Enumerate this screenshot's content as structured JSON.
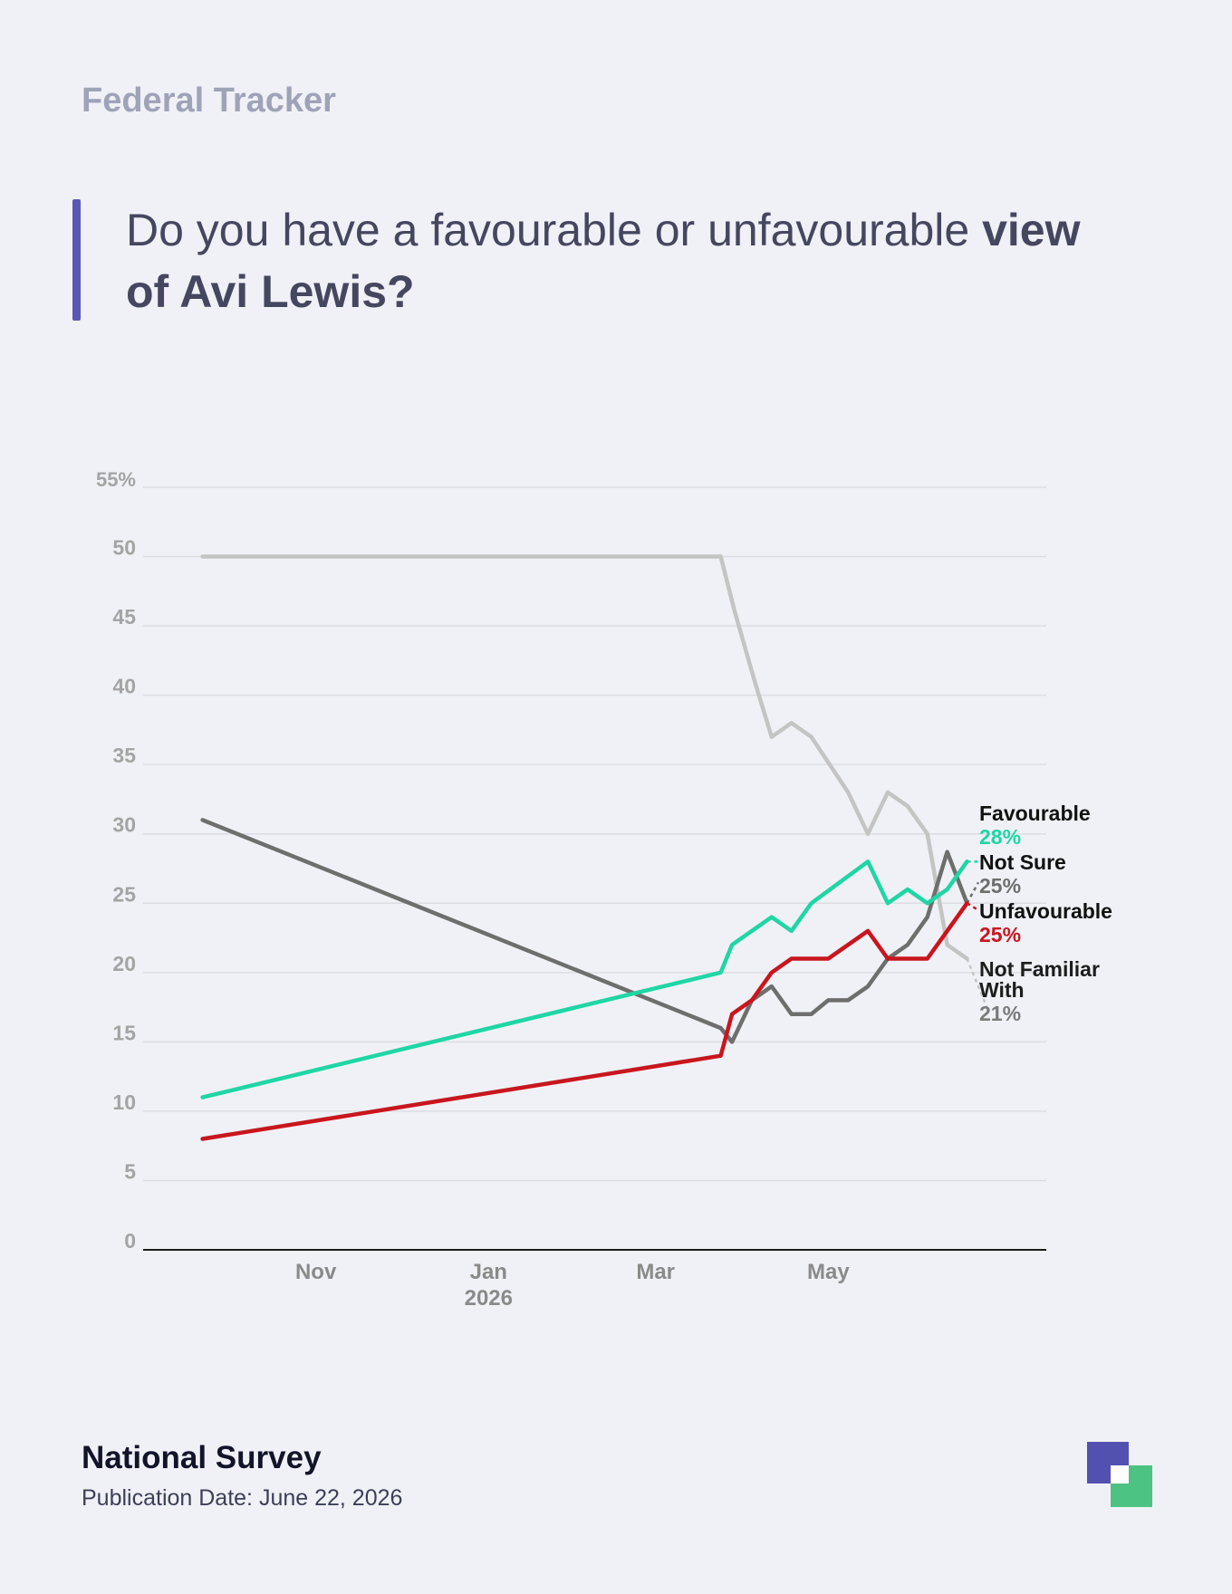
{
  "header": {
    "kicker": "Federal Tracker",
    "title_plain": "Do you have a favourable or unfavourable ",
    "title_bold_1": "view",
    "title_bold_2": "of Avi Lewis?"
  },
  "footer": {
    "title": "National Survey",
    "date": "Publication Date: June 22, 2026"
  },
  "colors": {
    "accent": "#5a58b5",
    "favourable": "#1fd6a4",
    "unfavourable": "#c8161e",
    "not_sure": "#6e6e6e",
    "not_familiar": "#c4c4c4",
    "logo_primary": "#5351b0",
    "logo_secondary": "#4cc383"
  },
  "chart_data": {
    "type": "line",
    "title": "Do you have a favourable or unfavourable view of Avi Lewis?",
    "xlabel": "",
    "ylabel": "",
    "ylim": [
      0,
      55
    ],
    "yticks": [
      0,
      5,
      10,
      15,
      20,
      25,
      30,
      35,
      40,
      45,
      50,
      55
    ],
    "ytick_labels": [
      "0",
      "5",
      "10",
      "15",
      "20",
      "25",
      "30",
      "35",
      "40",
      "45",
      "50",
      "55%"
    ],
    "xlim": [
      "2025-09-01",
      "2026-07-17"
    ],
    "xticks": [
      {
        "date": "2025-11-01",
        "label": "Nov",
        "sublabel": ""
      },
      {
        "date": "2026-01-01",
        "label": "Jan",
        "sublabel": "2026"
      },
      {
        "date": "2026-03-01",
        "label": "Mar",
        "sublabel": ""
      },
      {
        "date": "2026-05-01",
        "label": "May",
        "sublabel": ""
      }
    ],
    "grid": true,
    "legend": "end-labels-right",
    "series": [
      {
        "name": "Not Familiar With",
        "key": "not_familiar",
        "label_lines": [
          "Not Familiar",
          "With"
        ],
        "value_label": "21%",
        "points": [
          [
            "2025-09-22",
            50
          ],
          [
            "2026-03-24",
            50
          ],
          [
            "2026-03-29",
            46
          ],
          [
            "2026-04-05",
            41
          ],
          [
            "2026-04-11",
            37
          ],
          [
            "2026-04-18",
            38
          ],
          [
            "2026-04-25",
            37
          ],
          [
            "2026-05-08",
            33
          ],
          [
            "2026-05-15",
            30
          ],
          [
            "2026-05-22",
            33
          ],
          [
            "2026-05-29",
            32
          ],
          [
            "2026-06-05",
            30
          ],
          [
            "2026-06-12",
            22
          ],
          [
            "2026-06-19",
            21
          ]
        ],
        "projection": [
          "2026-06-26",
          17.5
        ]
      },
      {
        "name": "Not Sure",
        "key": "not_sure",
        "label_lines": [
          "Not Sure"
        ],
        "value_label": "25%",
        "points": [
          [
            "2025-09-22",
            31
          ],
          [
            "2026-03-24",
            16
          ],
          [
            "2026-03-28",
            15
          ],
          [
            "2026-04-04",
            18
          ],
          [
            "2026-04-11",
            19
          ],
          [
            "2026-04-18",
            17
          ],
          [
            "2026-04-25",
            17
          ],
          [
            "2026-05-01",
            18
          ],
          [
            "2026-05-08",
            18
          ],
          [
            "2026-05-15",
            19
          ],
          [
            "2026-05-22",
            21
          ],
          [
            "2026-05-29",
            22
          ],
          [
            "2026-06-05",
            24
          ],
          [
            "2026-06-12",
            28.7
          ],
          [
            "2026-06-19",
            25
          ]
        ],
        "projection": [
          "2026-06-23",
          26.5
        ]
      },
      {
        "name": "Favourable",
        "key": "favourable",
        "label_lines": [
          "Favourable"
        ],
        "value_label": "28%",
        "points": [
          [
            "2025-09-22",
            11
          ],
          [
            "2026-03-24",
            20
          ],
          [
            "2026-03-28",
            22
          ],
          [
            "2026-04-11",
            24
          ],
          [
            "2026-04-18",
            23
          ],
          [
            "2026-04-25",
            25
          ],
          [
            "2026-05-15",
            28
          ],
          [
            "2026-05-22",
            25
          ],
          [
            "2026-05-29",
            26
          ],
          [
            "2026-06-05",
            25
          ],
          [
            "2026-06-12",
            26
          ],
          [
            "2026-06-19",
            28
          ]
        ],
        "projection": [
          "2026-06-23",
          28
        ]
      },
      {
        "name": "Unfavourable",
        "key": "unfavourable",
        "label_lines": [
          "Unfavourable"
        ],
        "value_label": "25%",
        "points": [
          [
            "2025-09-22",
            8
          ],
          [
            "2026-03-24",
            14
          ],
          [
            "2026-03-28",
            17
          ],
          [
            "2026-04-04",
            18
          ],
          [
            "2026-04-11",
            20
          ],
          [
            "2026-04-18",
            21
          ],
          [
            "2026-05-01",
            21
          ],
          [
            "2026-05-15",
            23
          ],
          [
            "2026-05-22",
            21
          ],
          [
            "2026-06-05",
            21
          ],
          [
            "2026-06-12",
            23
          ],
          [
            "2026-06-19",
            25
          ]
        ],
        "projection": [
          "2026-06-23",
          24.5
        ]
      }
    ]
  }
}
